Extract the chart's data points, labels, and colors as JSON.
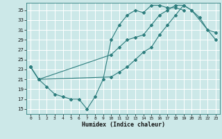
{
  "title": "",
  "xlabel": "Humidex (Indice chaleur)",
  "bg_color": "#cce8e8",
  "grid_color": "#ffffff",
  "line_color": "#2d7d7d",
  "xlim": [
    -0.5,
    23.5
  ],
  "ylim": [
    14.0,
    36.5
  ],
  "xticks": [
    0,
    1,
    2,
    3,
    4,
    5,
    6,
    7,
    8,
    9,
    10,
    11,
    12,
    13,
    14,
    15,
    16,
    17,
    18,
    19,
    20,
    21,
    22,
    23
  ],
  "yticks": [
    15,
    17,
    19,
    21,
    23,
    25,
    27,
    29,
    31,
    33,
    35
  ],
  "line1_x": [
    0,
    1,
    2,
    3,
    4,
    5,
    6,
    7,
    8,
    9,
    10,
    11,
    12,
    13,
    14,
    15,
    16,
    17,
    18,
    19
  ],
  "line1_y": [
    23.5,
    21.0,
    19.5,
    18.0,
    17.5,
    17.0,
    17.0,
    15.0,
    17.5,
    21.0,
    29.0,
    32.0,
    34.0,
    35.0,
    34.5,
    36.0,
    36.0,
    35.5,
    35.5,
    35.0
  ],
  "line2_x": [
    0,
    1,
    10,
    11,
    12,
    13,
    14,
    15,
    16,
    17,
    18,
    19,
    20,
    21,
    22,
    23
  ],
  "line2_y": [
    23.5,
    21.0,
    26.0,
    27.5,
    29.0,
    29.5,
    30.0,
    32.0,
    34.0,
    35.0,
    36.0,
    36.0,
    35.0,
    33.5,
    31.0,
    30.5
  ],
  "line3_x": [
    0,
    1,
    10,
    11,
    12,
    13,
    14,
    15,
    16,
    17,
    18,
    19,
    20,
    23
  ],
  "line3_y": [
    23.5,
    21.0,
    21.5,
    22.5,
    23.5,
    25.0,
    26.5,
    27.5,
    30.0,
    32.0,
    34.0,
    36.0,
    35.0,
    29.0
  ]
}
